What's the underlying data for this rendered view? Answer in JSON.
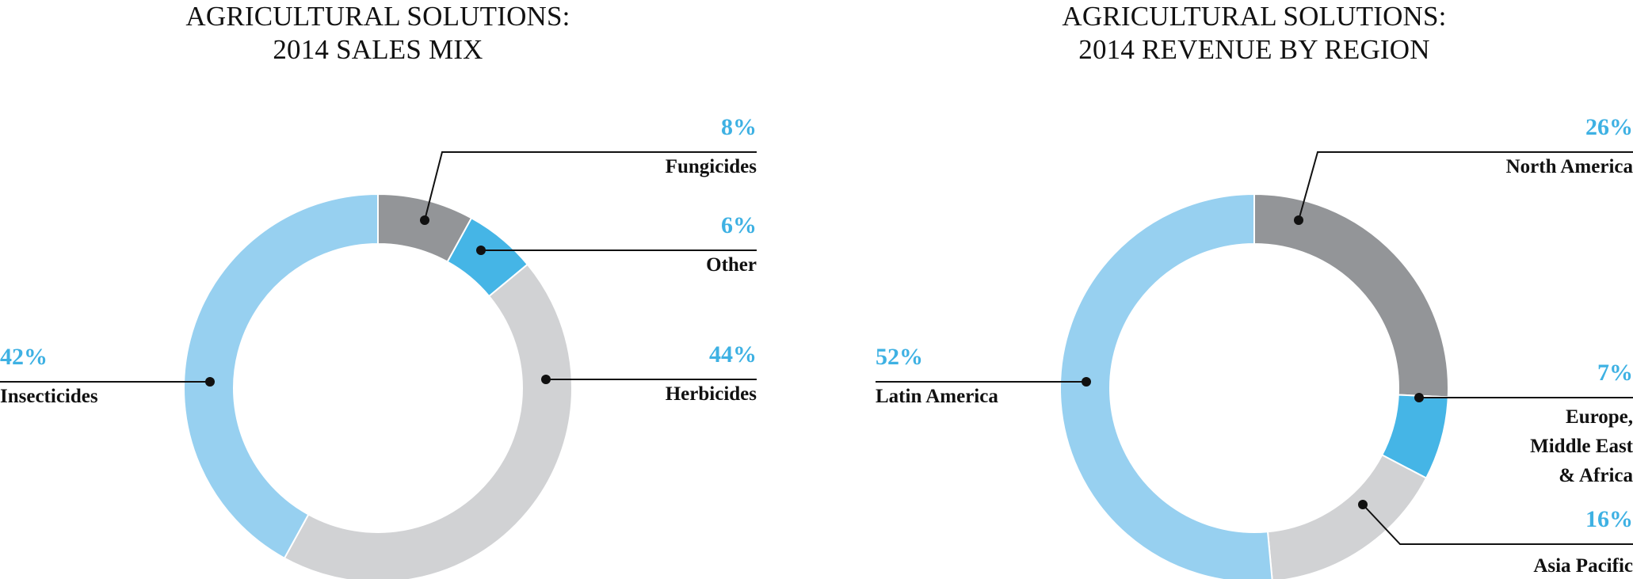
{
  "chart_data": [
    {
      "type": "pie",
      "title_line1": "AGRICULTURAL SOLUTIONS:",
      "title_line2": "2014 SALES MIX",
      "slices": [
        {
          "label": "Fungicides",
          "value": 8,
          "value_label": "8%",
          "color": "#939598"
        },
        {
          "label": "Other",
          "value": 6,
          "value_label": "6%",
          "color": "#45b5e6"
        },
        {
          "label": "Herbicides",
          "value": 44,
          "value_label": "44%",
          "color": "#d1d2d4"
        },
        {
          "label": "Insecticides",
          "value": 42,
          "value_label": "42%",
          "color": "#97d0f0"
        }
      ]
    },
    {
      "type": "pie",
      "title_line1": "AGRICULTURAL SOLUTIONS:",
      "title_line2": "2014 REVENUE BY REGION",
      "slices": [
        {
          "label": "North America",
          "value": 26,
          "value_label": "26%",
          "color": "#939598"
        },
        {
          "label": "Europe,\nMiddle East\n& Africa",
          "value": 7,
          "value_label": "7%",
          "color": "#45b5e6"
        },
        {
          "label": "Asia Pacific",
          "value": 16,
          "value_label": "16%",
          "color": "#d1d2d4"
        },
        {
          "label": "Latin America",
          "value": 52,
          "value_label": "52%",
          "color": "#97d0f0"
        }
      ]
    }
  ],
  "colors": {
    "percent_text": "#3eb1e3",
    "label_text": "#111111",
    "leader_line": "#111111"
  }
}
